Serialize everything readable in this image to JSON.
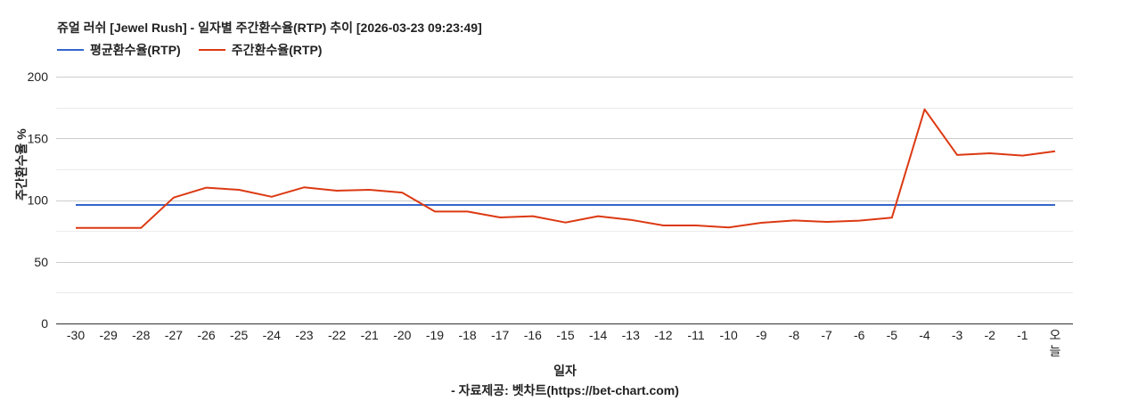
{
  "header": {
    "title": "쥬얼 러쉬 [Jewel Rush] - 일자별 주간환수율(RTP) 추이 [2026-03-23 09:23:49]"
  },
  "legend": [
    {
      "label": "평균환수율(RTP)",
      "color": "#3366cc"
    },
    {
      "label": "주간환수율(RTP)",
      "color": "#dc3912"
    }
  ],
  "axes": {
    "xlabel": "일자",
    "ylabel": "주간환수율 %"
  },
  "footer": "- 자료제공: 벳차트(https://bet-chart.com)",
  "chart_data": {
    "type": "line",
    "title": "쥬얼 러쉬 [Jewel Rush] - 일자별 주간환수율(RTP) 추이 [2026-03-23 09:23:49]",
    "xlabel": "일자",
    "ylabel": "주간환수율 %",
    "ylim": [
      0,
      200
    ],
    "yticks": [
      0,
      50,
      100,
      150,
      200
    ],
    "grid": true,
    "legend_position": "top-left",
    "categories": [
      "-30",
      "-29",
      "-28",
      "-27",
      "-26",
      "-25",
      "-24",
      "-23",
      "-22",
      "-21",
      "-20",
      "-19",
      "-18",
      "-17",
      "-16",
      "-15",
      "-14",
      "-13",
      "-12",
      "-11",
      "-10",
      "-9",
      "-8",
      "-7",
      "-6",
      "-5",
      "-4",
      "-3",
      "-2",
      "-1",
      "오늘"
    ],
    "series": [
      {
        "name": "평균환수율(RTP)",
        "color": "#3366cc",
        "values": [
          96,
          96,
          96,
          96,
          96,
          96,
          96,
          96,
          96,
          96,
          96,
          96,
          96,
          96,
          96,
          96,
          96,
          96,
          96,
          96,
          96,
          96,
          96,
          96,
          96,
          96,
          96,
          96,
          96,
          96,
          96
        ]
      },
      {
        "name": "주간환수율(RTP)",
        "color": "#dc3912",
        "values": [
          77.5,
          77.5,
          77.5,
          102,
          110,
          108.3,
          102.7,
          110.3,
          107.6,
          108.3,
          106.1,
          90.7,
          90.7,
          85.9,
          86.9,
          81.8,
          86.9,
          84,
          79.4,
          79.4,
          77.8,
          81.6,
          83.5,
          82.3,
          83.3,
          85.7,
          173.5,
          136.5,
          137.9,
          136,
          139.6
        ]
      }
    ]
  }
}
